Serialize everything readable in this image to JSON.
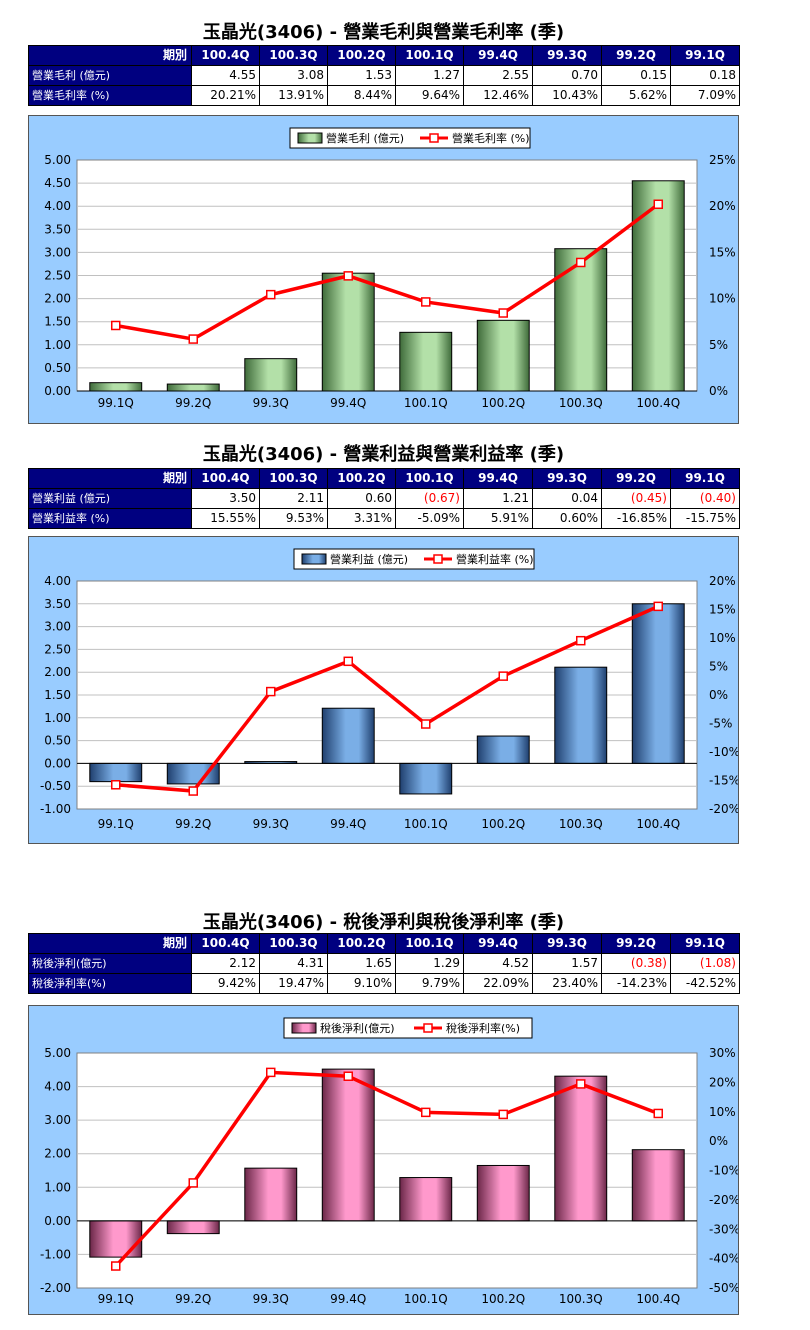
{
  "colors": {
    "header_bg": "#000080",
    "chart_bg": "#99ccff",
    "line": "#ff0000",
    "bar_green": "#b3e0a8",
    "bar_blue": "#7aaee6",
    "bar_pink": "#ff99cc",
    "negative_text": "#ff0000"
  },
  "sections": [
    {
      "title": "玉晶光(3406) - 營業毛利與營業毛利率 (季)",
      "table": {
        "corner": "期別",
        "periods": [
          "100.4Q",
          "100.3Q",
          "100.2Q",
          "100.1Q",
          "99.4Q",
          "99.3Q",
          "99.2Q",
          "99.1Q"
        ],
        "rows": [
          {
            "label": "營業毛利 (億元)",
            "values": [
              "4.55",
              "3.08",
              "1.53",
              "1.27",
              "2.55",
              "0.70",
              "0.15",
              "0.18"
            ]
          },
          {
            "label": "營業毛利率 (%)",
            "values": [
              "20.21%",
              "13.91%",
              "8.44%",
              "9.64%",
              "12.46%",
              "10.43%",
              "5.62%",
              "7.09%"
            ]
          }
        ]
      }
    },
    {
      "title": "玉晶光(3406) - 營業利益與營業利益率 (季)",
      "table": {
        "corner": "期別",
        "periods": [
          "100.4Q",
          "100.3Q",
          "100.2Q",
          "100.1Q",
          "99.4Q",
          "99.3Q",
          "99.2Q",
          "99.1Q"
        ],
        "rows": [
          {
            "label": "營業利益 (億元)",
            "values": [
              "3.50",
              "2.11",
              "0.60",
              "(0.67)",
              "1.21",
              "0.04",
              "(0.45)",
              "(0.40)"
            ]
          },
          {
            "label": "營業利益率 (%)",
            "values": [
              "15.55%",
              "9.53%",
              "3.31%",
              "-5.09%",
              "5.91%",
              "0.60%",
              "-16.85%",
              "-15.75%"
            ]
          }
        ]
      }
    },
    {
      "title": "玉晶光(3406) - 稅後淨利與稅後淨利率 (季)",
      "table": {
        "corner": "期別",
        "periods": [
          "100.4Q",
          "100.3Q",
          "100.2Q",
          "100.1Q",
          "99.4Q",
          "99.3Q",
          "99.2Q",
          "99.1Q"
        ],
        "rows": [
          {
            "label": "稅後淨利(億元)",
            "values": [
              "2.12",
              "4.31",
              "1.65",
              "1.29",
              "4.52",
              "1.57",
              "(0.38)",
              "(1.08)"
            ]
          },
          {
            "label": "稅後淨利率(%)",
            "values": [
              "9.42%",
              "19.47%",
              "9.10%",
              "9.79%",
              "22.09%",
              "23.40%",
              "-14.23%",
              "-42.52%"
            ]
          }
        ]
      }
    }
  ],
  "chart_data": [
    {
      "type": "bar",
      "categories": [
        "99.1Q",
        "99.2Q",
        "99.3Q",
        "99.4Q",
        "100.1Q",
        "100.2Q",
        "100.3Q",
        "100.4Q"
      ],
      "series": [
        {
          "name": "營業毛利 (億元)",
          "type": "bar",
          "axis": "left",
          "values": [
            0.18,
            0.15,
            0.7,
            2.55,
            1.27,
            1.53,
            3.08,
            4.55
          ]
        },
        {
          "name": "營業毛利率 (%)",
          "type": "line",
          "axis": "right",
          "values": [
            7.09,
            5.62,
            10.43,
            12.46,
            9.64,
            8.44,
            13.91,
            20.21
          ]
        }
      ],
      "left_axis": {
        "ticks": [
          "5.00",
          "4.50",
          "4.00",
          "3.50",
          "3.00",
          "2.50",
          "2.00",
          "1.50",
          "1.00",
          "0.50",
          "0.00"
        ],
        "min": 0,
        "max": 5,
        "step": 0.5
      },
      "right_axis": {
        "ticks": [
          "25%",
          "20%",
          "15%",
          "10%",
          "5%",
          "0%"
        ],
        "min": 0,
        "max": 25,
        "step": 5
      },
      "legend": "top-center",
      "grid": true,
      "bar_color": "#b3e0a8"
    },
    {
      "type": "bar",
      "categories": [
        "99.1Q",
        "99.2Q",
        "99.3Q",
        "99.4Q",
        "100.1Q",
        "100.2Q",
        "100.3Q",
        "100.4Q"
      ],
      "series": [
        {
          "name": "營業利益 (億元)",
          "type": "bar",
          "axis": "left",
          "values": [
            -0.4,
            -0.45,
            0.04,
            1.21,
            -0.67,
            0.6,
            2.11,
            3.5
          ]
        },
        {
          "name": "營業利益率 (%)",
          "type": "line",
          "axis": "right",
          "values": [
            -15.75,
            -16.85,
            0.6,
            5.91,
            -5.09,
            3.31,
            9.53,
            15.55
          ]
        }
      ],
      "left_axis": {
        "ticks": [
          "4.00",
          "3.50",
          "3.00",
          "2.50",
          "2.00",
          "1.50",
          "1.00",
          "0.50",
          "0.00",
          "-0.50",
          "-1.00"
        ],
        "min": -1,
        "max": 4,
        "step": 0.5
      },
      "right_axis": {
        "ticks": [
          "20%",
          "15%",
          "10%",
          "5%",
          "0%",
          "-5%",
          "-10%",
          "-15%",
          "-20%"
        ],
        "min": -20,
        "max": 20,
        "step": 5
      },
      "legend": "top-center",
      "grid": true,
      "bar_color": "#7aaee6"
    },
    {
      "type": "bar",
      "categories": [
        "99.1Q",
        "99.2Q",
        "99.3Q",
        "99.4Q",
        "100.1Q",
        "100.2Q",
        "100.3Q",
        "100.4Q"
      ],
      "series": [
        {
          "name": "稅後淨利(億元)",
          "type": "bar",
          "axis": "left",
          "values": [
            -1.08,
            -0.38,
            1.57,
            4.52,
            1.29,
            1.65,
            4.31,
            2.12
          ]
        },
        {
          "name": "稅後淨利率(%)",
          "type": "line",
          "axis": "right",
          "values": [
            -42.52,
            -14.23,
            23.4,
            22.09,
            9.79,
            9.1,
            19.47,
            9.42
          ]
        }
      ],
      "left_axis": {
        "ticks": [
          "5.00",
          "4.00",
          "3.00",
          "2.00",
          "1.00",
          "0.00",
          "-1.00",
          "-2.00"
        ],
        "min": -2,
        "max": 5,
        "step": 1
      },
      "right_axis": {
        "ticks": [
          "30%",
          "20%",
          "10%",
          "0%",
          "-10%",
          "-20%",
          "-30%",
          "-40%",
          "-50%"
        ],
        "min": -50,
        "max": 30,
        "step": 10
      },
      "legend": "top-center",
      "grid": true,
      "bar_color": "#ff99cc"
    }
  ]
}
